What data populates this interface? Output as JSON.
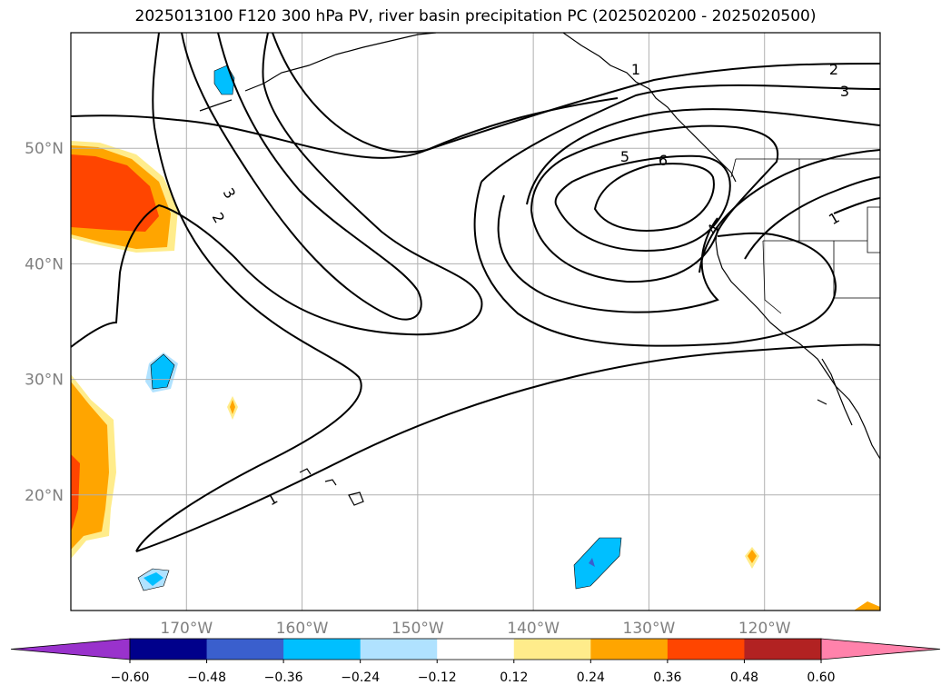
{
  "title": "2025013100 F120 300 hPa PV, river basin precipitation PC (2025020200 - 2025020500)",
  "map": {
    "lon_range": [
      -180,
      -110
    ],
    "lat_range": [
      10,
      60
    ],
    "lat_ticks": [
      {
        "value": 50,
        "label": "50°N"
      },
      {
        "value": 40,
        "label": "40°N"
      },
      {
        "value": 30,
        "label": "30°N"
      },
      {
        "value": 20,
        "label": "20°N"
      }
    ],
    "lon_ticks": [
      {
        "value": -170,
        "label": "170°W"
      },
      {
        "value": -160,
        "label": "160°W"
      },
      {
        "value": -150,
        "label": "150°W"
      },
      {
        "value": -140,
        "label": "140°W"
      },
      {
        "value": -130,
        "label": "130°W"
      },
      {
        "value": -120,
        "label": "120°W"
      }
    ],
    "grid": true
  },
  "contour_labels": [
    "1",
    "2",
    "3",
    "5",
    "6",
    "1",
    "2",
    "3",
    "1",
    "4"
  ],
  "colorbar": {
    "colors": [
      "#9932cc",
      "#00008b",
      "#3a5fcd",
      "#00bfff",
      "#b0e2ff",
      "#ffffff",
      "#ffec8b",
      "#ffa500",
      "#ff4500",
      "#b22222",
      "#ff82ab"
    ],
    "labels": [
      "−0.60",
      "−0.48",
      "−0.36",
      "−0.24",
      "−0.12",
      "0.12",
      "0.24",
      "0.36",
      "0.48",
      "0.60"
    ],
    "levels": [
      -0.6,
      -0.48,
      -0.36,
      -0.24,
      -0.12,
      0.12,
      0.24,
      0.36,
      0.48,
      0.6
    ]
  }
}
